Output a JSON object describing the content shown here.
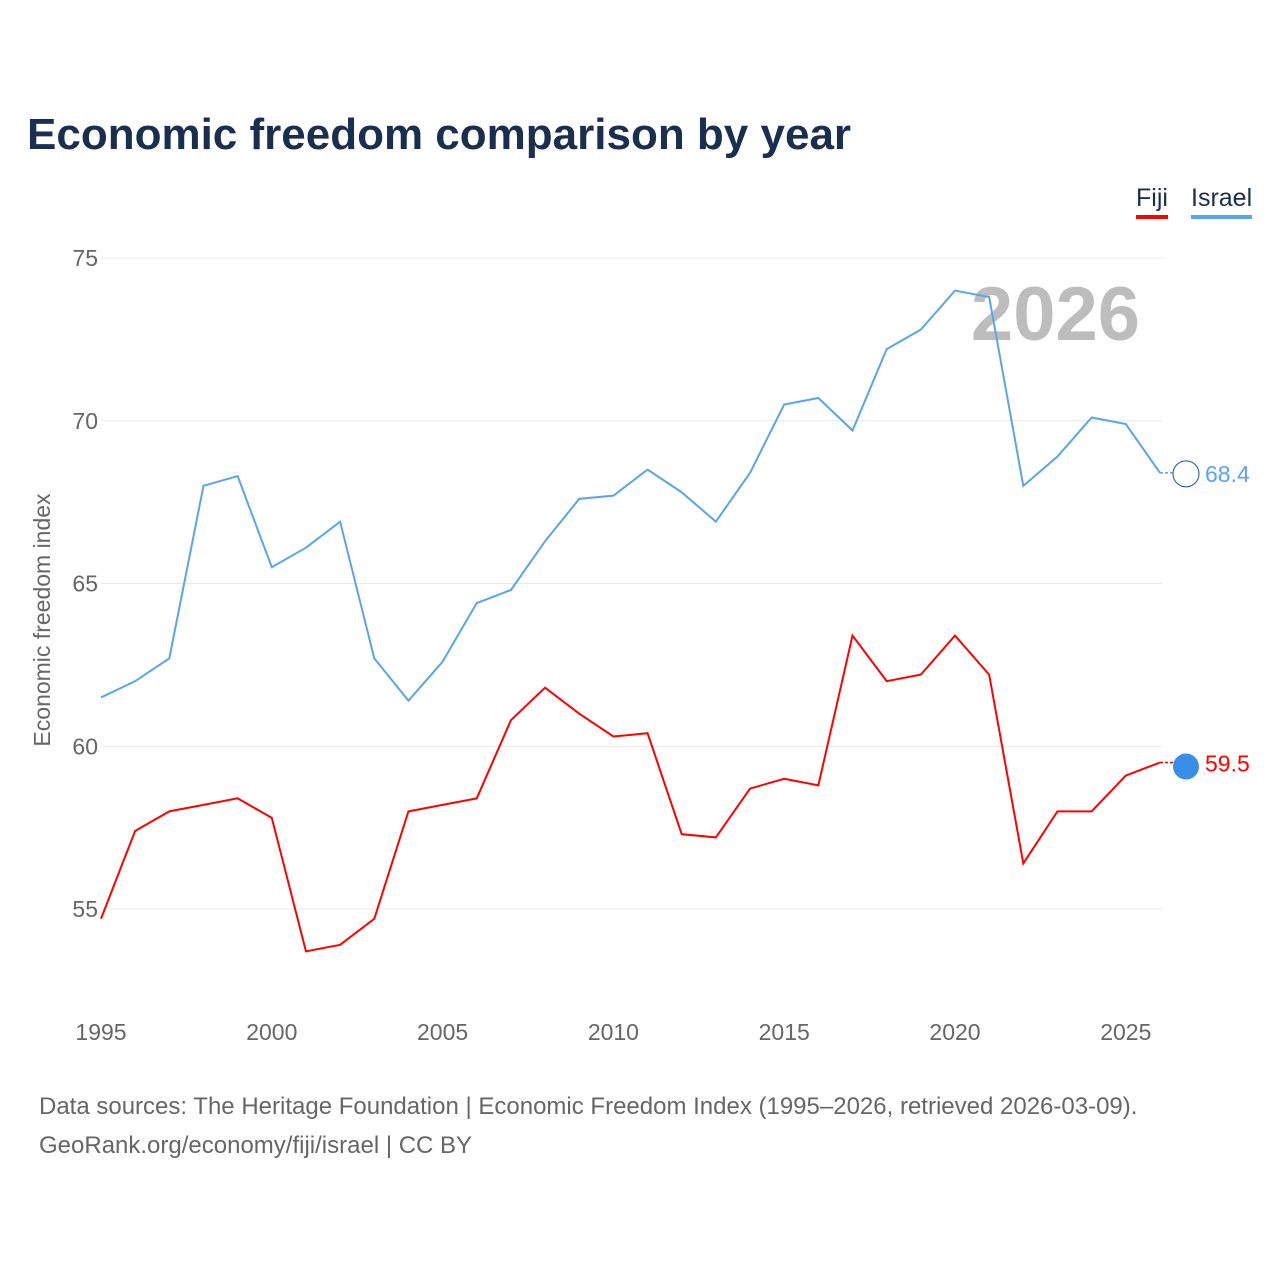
{
  "title": "Economic freedom comparison by year",
  "source_line1": "Data sources: The Heritage Foundation | Economic Freedom Index (1995–2026, retrieved 2026-03-09).",
  "source_line2": "GeoRank.org/economy/fiji/israel | CC BY",
  "chart_data": {
    "type": "line",
    "title": "Economic freedom comparison by year",
    "ylabel": "Economic freedom index",
    "xlabel": "",
    "year_watermark": "2026",
    "x": [
      1995,
      1996,
      1997,
      1998,
      1999,
      2000,
      2001,
      2002,
      2003,
      2004,
      2005,
      2006,
      2007,
      2008,
      2009,
      2010,
      2011,
      2012,
      2013,
      2014,
      2015,
      2016,
      2017,
      2018,
      2019,
      2020,
      2021,
      2022,
      2023,
      2024,
      2025,
      2026
    ],
    "xticks": [
      "1995",
      "2000",
      "2005",
      "2010",
      "2015",
      "2020",
      "2025"
    ],
    "yticks": [
      "55",
      "60",
      "65",
      "70",
      "75"
    ],
    "legend_position": "top-right",
    "series": [
      {
        "name": "Fiji",
        "color": "#ff0000",
        "end_label": "59.5",
        "values": [
          54.7,
          57.4,
          58.0,
          58.2,
          58.4,
          57.8,
          53.7,
          53.9,
          54.7,
          58.0,
          58.2,
          58.4,
          60.8,
          61.8,
          61.0,
          60.3,
          60.4,
          57.3,
          57.2,
          58.7,
          59.0,
          58.8,
          63.4,
          62.0,
          62.2,
          63.4,
          62.2,
          56.4,
          58.0,
          58.0,
          59.1,
          59.5
        ]
      },
      {
        "name": "Israel",
        "color": "#5aa5ea",
        "end_label": "68.4",
        "values": [
          61.5,
          62.0,
          62.7,
          68.0,
          68.3,
          65.5,
          66.1,
          66.9,
          62.7,
          61.4,
          62.6,
          64.4,
          64.8,
          66.3,
          67.6,
          67.7,
          68.5,
          67.8,
          66.9,
          68.4,
          70.5,
          70.7,
          69.7,
          72.2,
          72.8,
          74.0,
          73.8,
          68.0,
          68.9,
          70.1,
          69.9,
          68.4
        ]
      }
    ]
  }
}
